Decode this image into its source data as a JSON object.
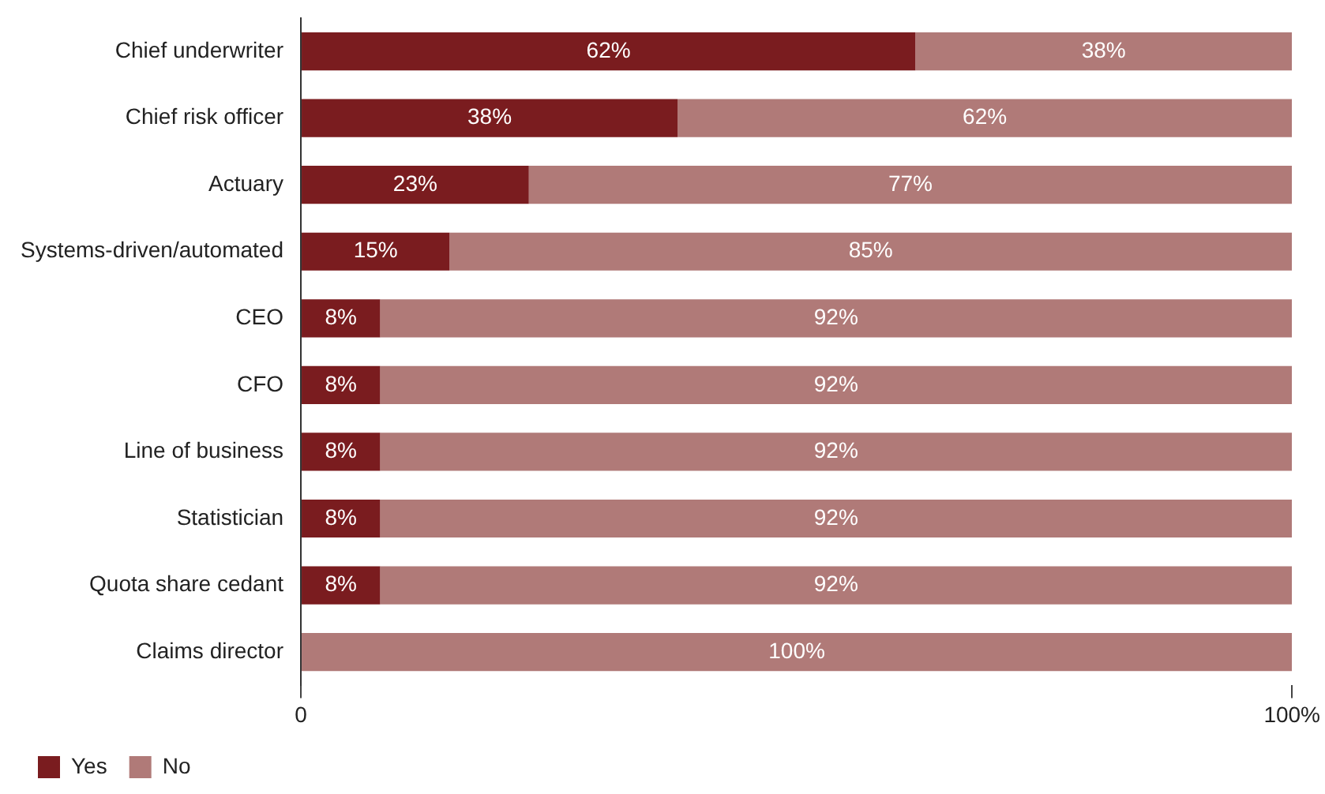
{
  "chart_data": {
    "type": "bar",
    "orientation": "horizontal",
    "stacked": true,
    "categories": [
      "Chief underwriter",
      "Chief risk officer",
      "Actuary",
      "Systems-driven/automated",
      "CEO",
      "CFO",
      "Line of business",
      "Statistician",
      "Quota share cedant",
      "Claims director"
    ],
    "series": [
      {
        "name": "Yes",
        "color": "#7a1c1f",
        "values": [
          62,
          38,
          23,
          15,
          8,
          8,
          8,
          8,
          8,
          0
        ],
        "value_labels": [
          "62%",
          "38%",
          "23%",
          "15%",
          "8%",
          "8%",
          "8%",
          "8%",
          "8%",
          null
        ]
      },
      {
        "name": "No",
        "color": "#b07a78",
        "values": [
          38,
          62,
          77,
          85,
          92,
          92,
          92,
          92,
          92,
          100
        ],
        "value_labels": [
          "38%",
          "62%",
          "77%",
          "85%",
          "92%",
          "92%",
          "92%",
          "92%",
          "92%",
          "100%"
        ]
      }
    ],
    "xlim": [
      0,
      100
    ],
    "xticks": [
      0,
      {
        "value": 100,
        "label": "100%"
      }
    ],
    "grid": false,
    "legend": "bottom left"
  }
}
